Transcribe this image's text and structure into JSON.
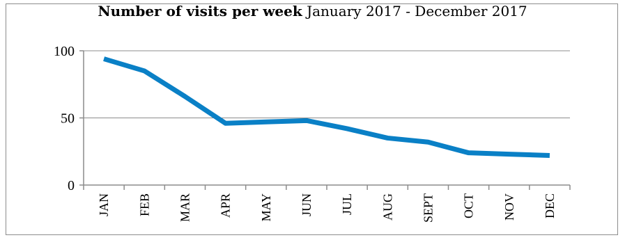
{
  "chart_data": {
    "type": "line",
    "title": "Number of visits per week",
    "subtitle": "January 2017 - December 2017",
    "xlabel": "",
    "ylabel": "",
    "categories": [
      "JAN",
      "FEB",
      "MAR",
      "APR",
      "MAY",
      "JUN",
      "JUL",
      "AUG",
      "SEPT",
      "OCT",
      "NOV",
      "DEC"
    ],
    "series": [
      {
        "values": [
          94,
          85,
          66,
          46,
          47,
          48,
          42,
          35,
          32,
          24,
          23,
          22
        ]
      }
    ],
    "ylim": [
      0,
      100
    ],
    "yticks": [
      0,
      50,
      100
    ],
    "grid": true,
    "legend": "none",
    "line_color": "#0a80c6",
    "grid_color": "#8c8c8c"
  }
}
